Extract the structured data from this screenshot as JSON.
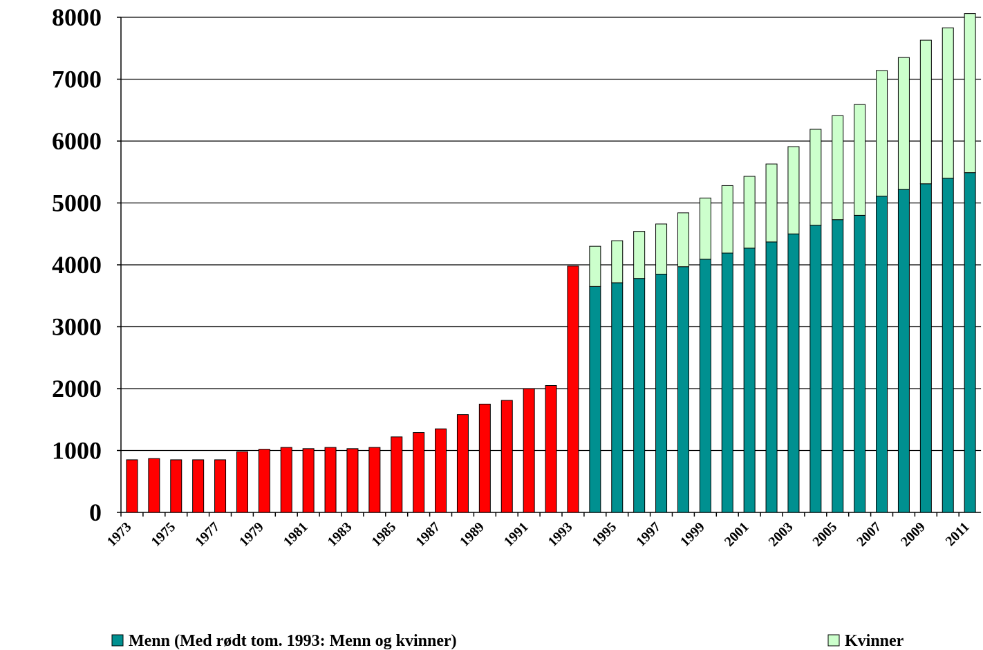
{
  "chart_data": {
    "type": "stacked_bar",
    "categories": [
      "1973",
      null,
      "1975",
      null,
      "1977",
      null,
      "1979",
      null,
      "1981",
      null,
      "1983",
      null,
      "1985",
      null,
      "1987",
      null,
      "1989",
      null,
      "1991",
      null,
      "1993",
      null,
      "1995",
      null,
      "1997",
      null,
      "1999",
      null,
      "2001",
      null,
      "2003",
      null,
      "2005",
      null,
      "2007",
      null,
      "2009",
      null,
      "2011"
    ],
    "series": [
      {
        "name": "Menn (Med rødt tom. 1993: Menn og kvinner)",
        "color": "#009090",
        "colors": [
          "#ff0000",
          "#ff0000",
          "#ff0000",
          "#ff0000",
          "#ff0000",
          "#ff0000",
          "#ff0000",
          "#ff0000",
          "#ff0000",
          "#ff0000",
          "#ff0000",
          "#ff0000",
          "#ff0000",
          "#ff0000",
          "#ff0000",
          "#ff0000",
          "#ff0000",
          "#ff0000",
          "#ff0000",
          "#ff0000",
          "#ff0000",
          "#009090",
          "#009090",
          "#009090",
          "#009090",
          "#009090",
          "#009090",
          "#009090",
          "#009090",
          "#009090",
          "#009090",
          "#009090",
          "#009090",
          "#009090",
          "#009090",
          "#009090",
          "#009090",
          "#009090",
          "#009090"
        ],
        "values": [
          850,
          870,
          850,
          850,
          850,
          980,
          1020,
          1050,
          1030,
          1050,
          1030,
          1050,
          1220,
          1290,
          1350,
          1580,
          1750,
          1810,
          2000,
          2050,
          3980,
          3650,
          3710,
          3780,
          3850,
          3970,
          4090,
          4190,
          4270,
          4370,
          4500,
          4640,
          4730,
          4800,
          5110,
          5220,
          5310,
          5400,
          5490
        ]
      },
      {
        "name": "Kvinner",
        "color": "#ccffcc",
        "values": [
          null,
          null,
          null,
          null,
          null,
          null,
          null,
          null,
          null,
          null,
          null,
          null,
          null,
          null,
          null,
          null,
          null,
          null,
          null,
          null,
          null,
          650,
          680,
          760,
          810,
          870,
          990,
          1090,
          1160,
          1260,
          1410,
          1550,
          1680,
          1790,
          2030,
          2130,
          2320,
          2430,
          2570
        ]
      }
    ],
    "ylim": [
      0,
      8000
    ],
    "yticks": [
      0,
      1000,
      2000,
      3000,
      4000,
      5000,
      6000,
      7000,
      8000
    ],
    "grid": true,
    "legend": "bottom"
  }
}
